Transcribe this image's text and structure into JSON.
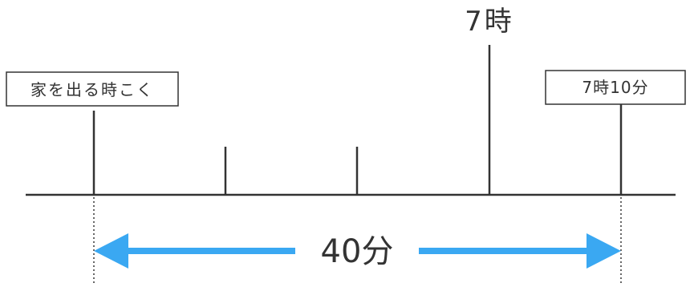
{
  "labels": {
    "leave_home": "家を出る時こく",
    "seven": "7時",
    "seven_ten": "7時10分",
    "duration": "40分"
  },
  "colors": {
    "line": "#333333",
    "arrow": "#3aa8f2"
  },
  "timeline": {
    "ticks": [
      {
        "name": "tick-leave-home",
        "kind": "major"
      },
      {
        "name": "tick-2",
        "kind": "minor"
      },
      {
        "name": "tick-3",
        "kind": "minor"
      },
      {
        "name": "tick-seven",
        "kind": "tall"
      },
      {
        "name": "tick-seven-ten",
        "kind": "major"
      }
    ]
  }
}
